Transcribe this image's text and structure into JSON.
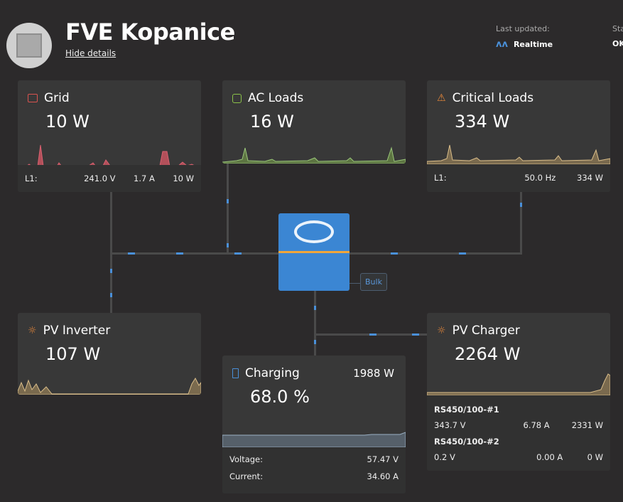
{
  "header": {
    "title": "FVE Kopanice",
    "hide_details": "Hide details",
    "last_updated_label": "Last updated:",
    "last_updated_value": "Realtime",
    "status_label": "Status",
    "status_value": "OK"
  },
  "grid": {
    "title": "Grid",
    "power": "10 W",
    "phase": "L1:",
    "voltage": "241.0 V",
    "current": "1.7 A",
    "watts": "10 W",
    "color": "#d9534f"
  },
  "ac_loads": {
    "title": "AC Loads",
    "power": "16 W",
    "color": "#8bc34a"
  },
  "critical_loads": {
    "title": "Critical Loads",
    "power": "334 W",
    "phase": "L1:",
    "frequency": "50.0 Hz",
    "watts": "334 W",
    "color": "#e8883a"
  },
  "inverter": {
    "state": "Bulk"
  },
  "pv_inverter": {
    "title": "PV Inverter",
    "power": "107 W"
  },
  "pv_charger": {
    "title": "PV Charger",
    "power": "2264 W",
    "devices": [
      {
        "name": "RS450/100-#1",
        "voltage": "343.7 V",
        "current": "6.78 A",
        "watts": "2331 W"
      },
      {
        "name": "RS450/100-#2",
        "voltage": "0.2 V",
        "current": "0.00 A",
        "watts": "0 W"
      }
    ]
  },
  "battery": {
    "title": "Charging",
    "power": "1988 W",
    "soc": "68.0 %",
    "voltage_label": "Voltage:",
    "voltage": "57.47 V",
    "current_label": "Current:",
    "current": "34.60 A"
  }
}
